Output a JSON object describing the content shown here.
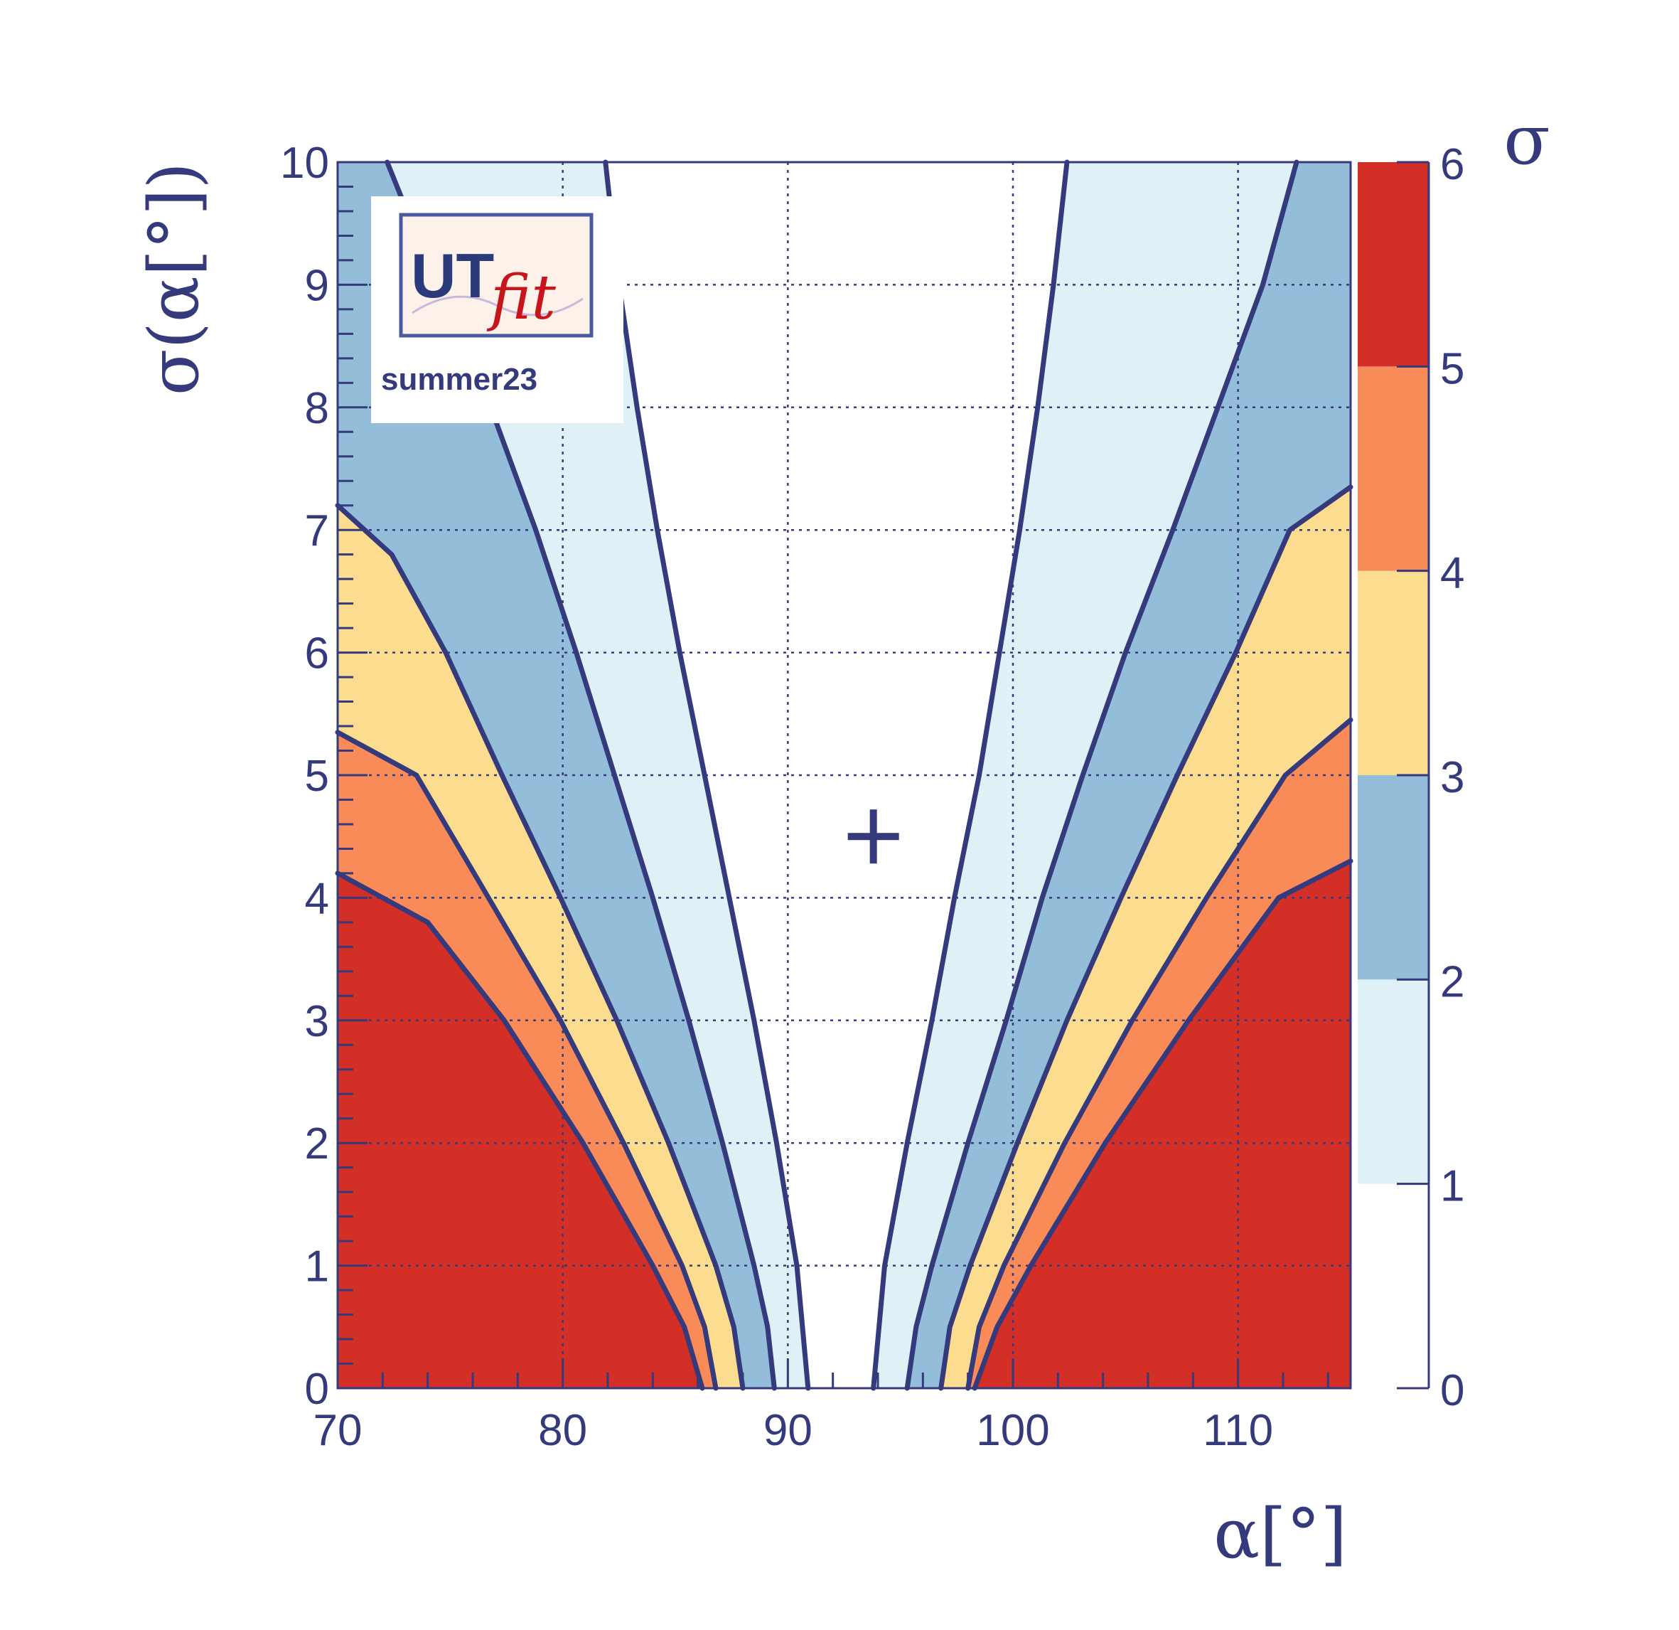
{
  "chart_data": {
    "type": "contour",
    "xlabel": "α[°]",
    "ylabel": "σ(α[°])",
    "xlim": [
      70,
      115
    ],
    "ylim": [
      0,
      10
    ],
    "x_ticks": [
      70,
      80,
      90,
      100,
      110
    ],
    "y_ticks": [
      0,
      1,
      2,
      3,
      4,
      5,
      6,
      7,
      8,
      9,
      10
    ],
    "x_tick_labels": [
      "70",
      "80",
      "90",
      "100",
      "110"
    ],
    "y_tick_labels": [
      "0",
      "1",
      "2",
      "3",
      "4",
      "5",
      "6",
      "7",
      "8",
      "9",
      "10"
    ],
    "grid": true,
    "colorbar": {
      "title": "σ",
      "range": [
        0,
        6
      ],
      "ticks": [
        0,
        1,
        2,
        3,
        4,
        5,
        6
      ],
      "tick_labels": [
        "0",
        "1",
        "2",
        "3",
        "4",
        "5",
        "6"
      ],
      "bands": [
        {
          "from": 0,
          "to": 1,
          "color": "#ffffff"
        },
        {
          "from": 1,
          "to": 2,
          "color": "#dff0f6"
        },
        {
          "from": 2,
          "to": 3,
          "color": "#93bdd9"
        },
        {
          "from": 3,
          "to": 4,
          "color": "#fcdc8f"
        },
        {
          "from": 4,
          "to": 5,
          "color": "#f88b58"
        },
        {
          "from": 5,
          "to": 6,
          "color": "#d42f27"
        }
      ]
    },
    "best_fit_marker": {
      "x": 93.8,
      "y": 4.5,
      "symbol": "+"
    },
    "contours": [
      {
        "level": 1,
        "side": "left",
        "points": [
          [
            90.9,
            0
          ],
          [
            90.4,
            1
          ],
          [
            89.5,
            2
          ],
          [
            88.5,
            3
          ],
          [
            87.4,
            4
          ],
          [
            86.3,
            5
          ],
          [
            85.2,
            6
          ],
          [
            84.2,
            7
          ],
          [
            83.3,
            8
          ],
          [
            82.5,
            9
          ],
          [
            81.9,
            10
          ]
        ]
      },
      {
        "level": 2,
        "side": "left",
        "points": [
          [
            89.4,
            0
          ],
          [
            89.1,
            0.5
          ],
          [
            88.5,
            1
          ],
          [
            87.1,
            2
          ],
          [
            85.6,
            3
          ],
          [
            84.0,
            4
          ],
          [
            82.3,
            5
          ],
          [
            80.6,
            6
          ],
          [
            78.8,
            7
          ],
          [
            76.8,
            8
          ],
          [
            74.4,
            9
          ],
          [
            72.2,
            10
          ]
        ]
      },
      {
        "level": 3,
        "side": "left",
        "points": [
          [
            88.0,
            0
          ],
          [
            87.6,
            0.5
          ],
          [
            86.8,
            1
          ],
          [
            84.7,
            2
          ],
          [
            82.4,
            3
          ],
          [
            79.9,
            4
          ],
          [
            77.3,
            5
          ],
          [
            74.8,
            6
          ],
          [
            72.4,
            6.8
          ],
          [
            70.0,
            7.2
          ]
        ]
      },
      {
        "level": 4,
        "side": "left",
        "points": [
          [
            86.8,
            0
          ],
          [
            86.3,
            0.5
          ],
          [
            85.3,
            1
          ],
          [
            82.7,
            2
          ],
          [
            79.9,
            3
          ],
          [
            76.7,
            4
          ],
          [
            73.5,
            5
          ],
          [
            70.0,
            5.35
          ]
        ]
      },
      {
        "level": 5,
        "side": "left",
        "points": [
          [
            86.2,
            0
          ],
          [
            85.4,
            0.5
          ],
          [
            84.0,
            1
          ],
          [
            80.9,
            2
          ],
          [
            77.4,
            3
          ],
          [
            74.0,
            3.8
          ],
          [
            70.0,
            4.2
          ]
        ]
      },
      {
        "level": 1,
        "side": "right",
        "points": [
          [
            93.8,
            0
          ],
          [
            94.3,
            1
          ],
          [
            95.3,
            2
          ],
          [
            96.4,
            3
          ],
          [
            97.4,
            4
          ],
          [
            98.5,
            5
          ],
          [
            99.4,
            6
          ],
          [
            100.3,
            7
          ],
          [
            101.1,
            8
          ],
          [
            101.8,
            9
          ],
          [
            102.4,
            10
          ]
        ]
      },
      {
        "level": 2,
        "side": "right",
        "points": [
          [
            95.3,
            0
          ],
          [
            95.7,
            0.5
          ],
          [
            96.4,
            1
          ],
          [
            98.0,
            2
          ],
          [
            99.7,
            3
          ],
          [
            101.3,
            4
          ],
          [
            103.1,
            5
          ],
          [
            105.0,
            6
          ],
          [
            107.1,
            7
          ],
          [
            109.1,
            8
          ],
          [
            111.1,
            9
          ],
          [
            112.6,
            10
          ]
        ]
      },
      {
        "level": 3,
        "side": "right",
        "points": [
          [
            96.8,
            0
          ],
          [
            97.2,
            0.5
          ],
          [
            98.1,
            1
          ],
          [
            100.2,
            2
          ],
          [
            102.4,
            3
          ],
          [
            104.8,
            4
          ],
          [
            107.3,
            5
          ],
          [
            109.9,
            6
          ],
          [
            112.3,
            7
          ],
          [
            115.0,
            7.35
          ]
        ]
      },
      {
        "level": 4,
        "side": "right",
        "points": [
          [
            98.0,
            0
          ],
          [
            98.5,
            0.5
          ],
          [
            99.6,
            1
          ],
          [
            102.3,
            2
          ],
          [
            105.3,
            3
          ],
          [
            108.6,
            4
          ],
          [
            112.1,
            5
          ],
          [
            115.0,
            5.45
          ]
        ]
      },
      {
        "level": 5,
        "side": "right",
        "points": [
          [
            98.3,
            0
          ],
          [
            99.3,
            0.5
          ],
          [
            100.8,
            1
          ],
          [
            104.1,
            2
          ],
          [
            107.8,
            3
          ],
          [
            111.8,
            4
          ],
          [
            115.0,
            4.3
          ]
        ]
      }
    ],
    "logo": {
      "text_main": "UT",
      "text_script": "fit",
      "caption": "summer23"
    }
  }
}
